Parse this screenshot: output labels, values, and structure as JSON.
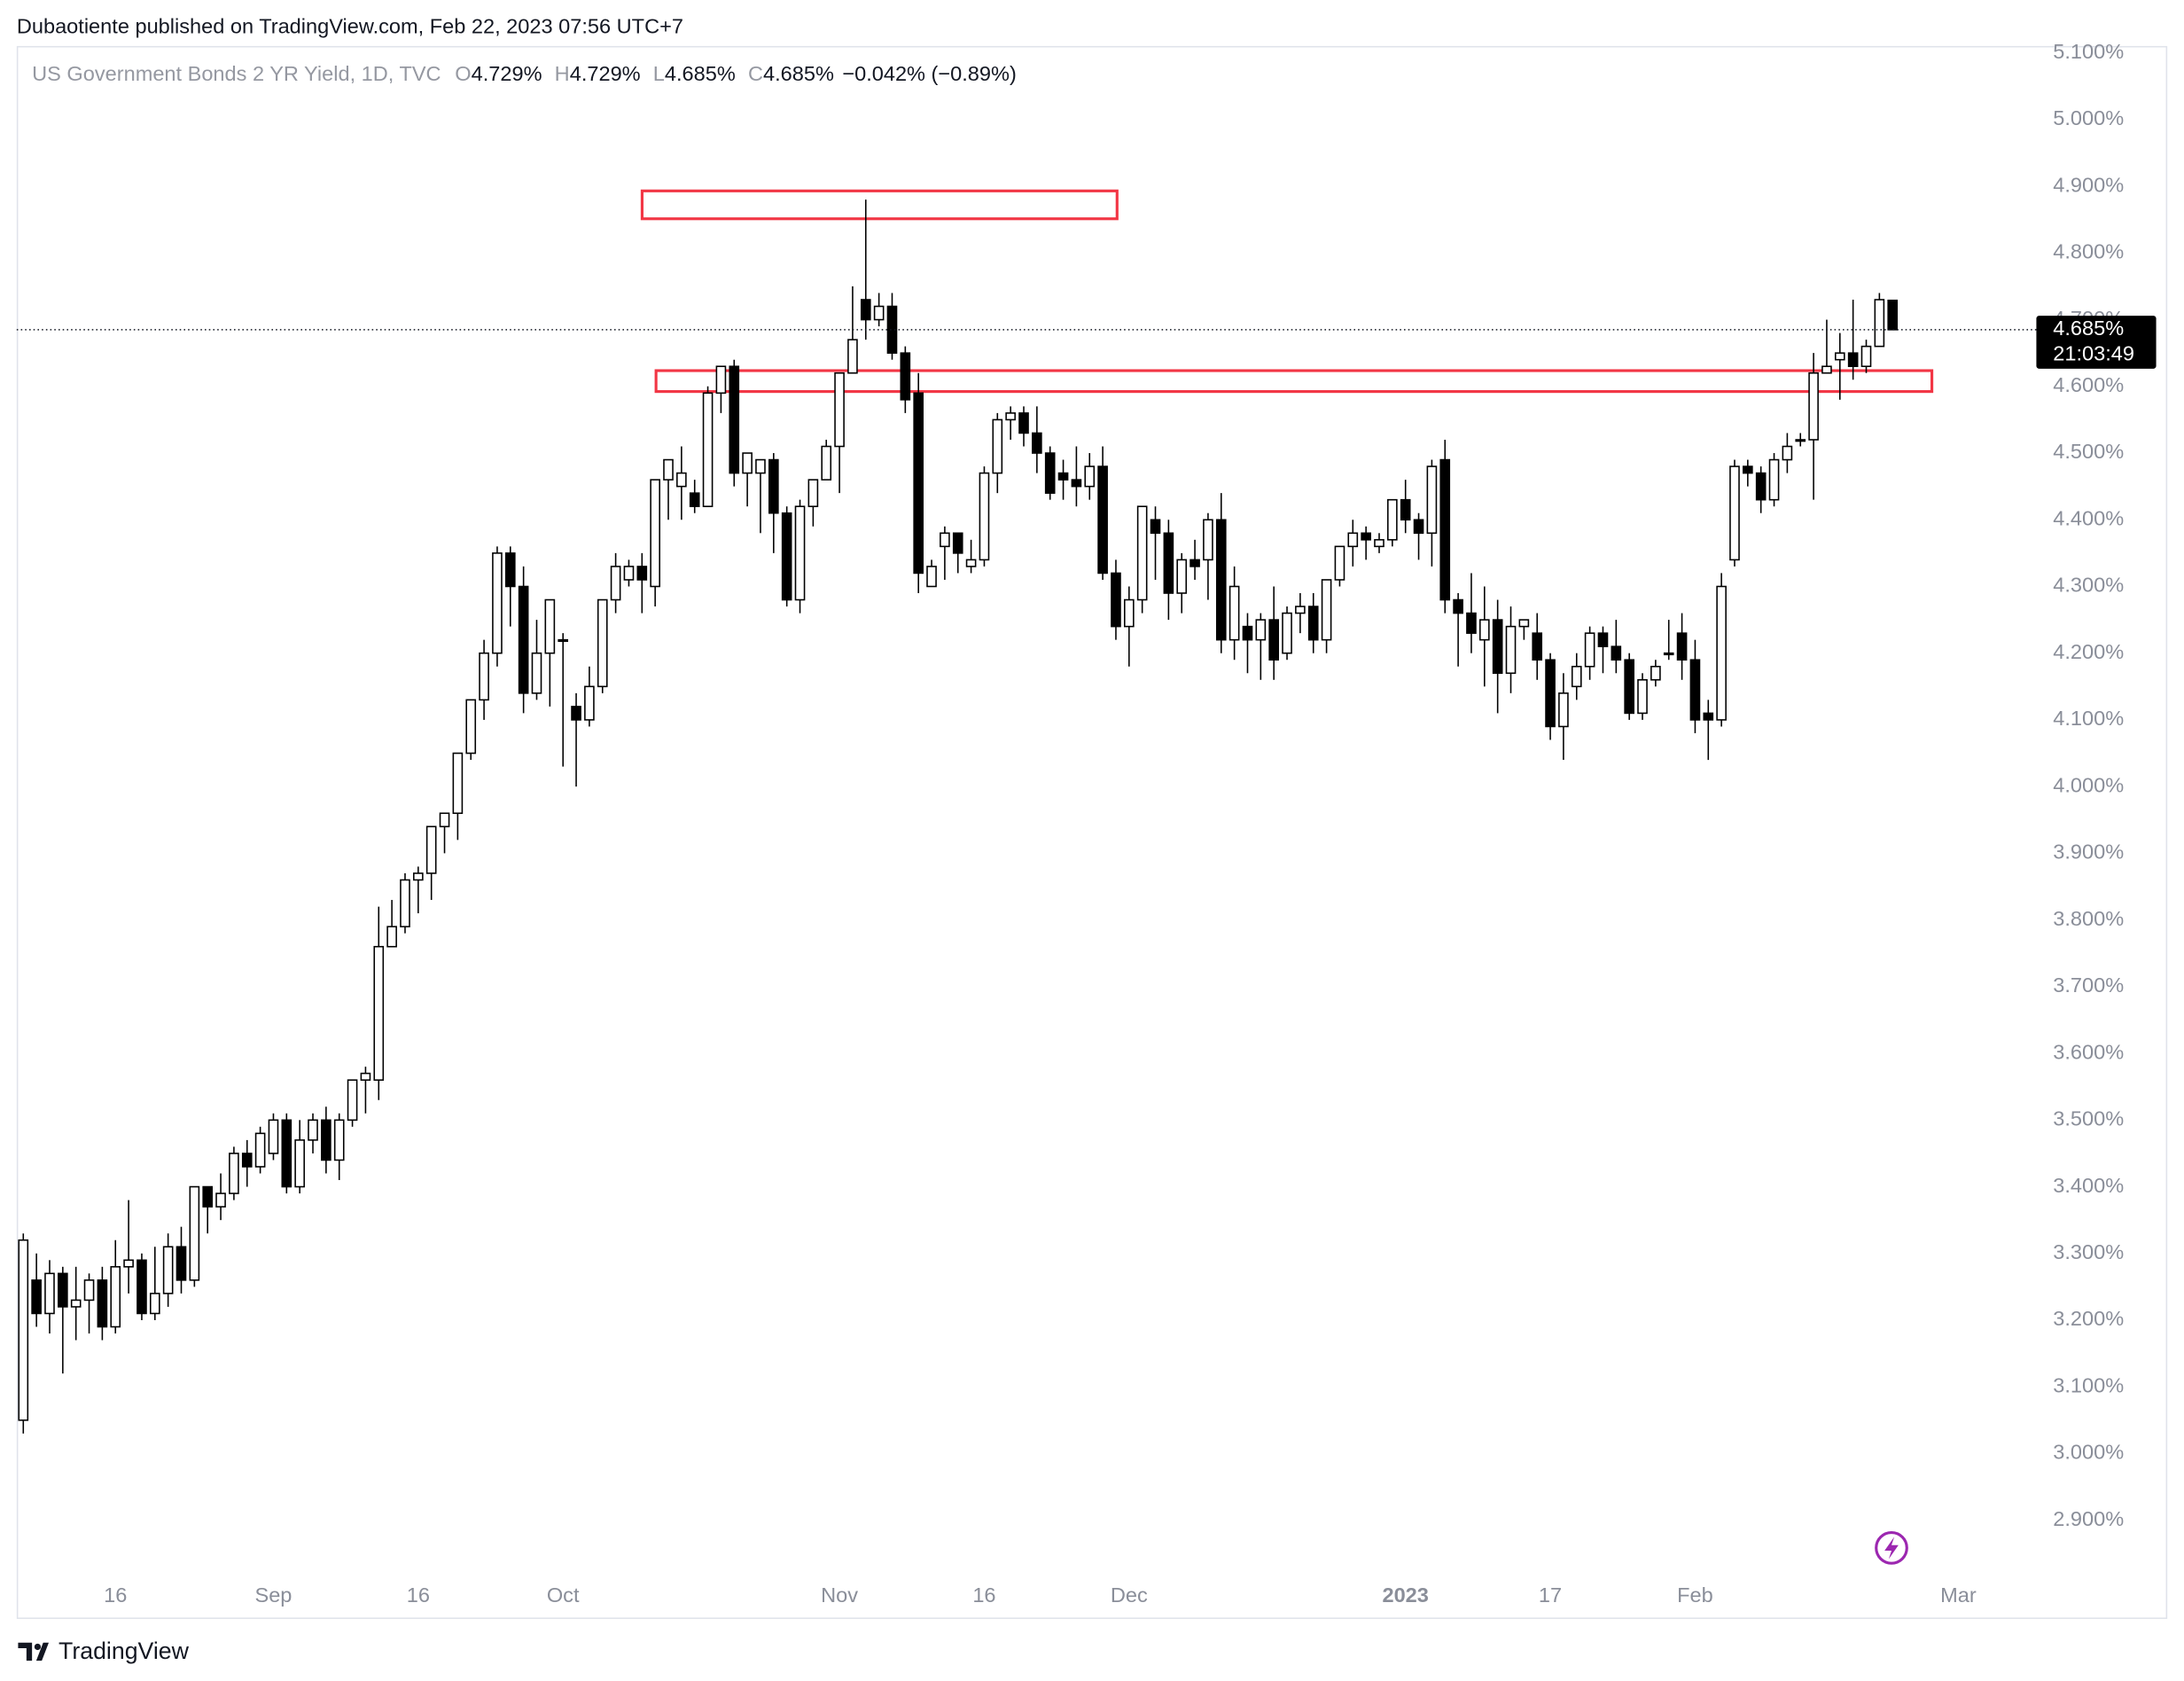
{
  "header": "Dubaotiente published on TradingView.com, Feb 22, 2023 07:56 UTC+7",
  "footer": "TradingView",
  "chart_data": {
    "type": "candlestick",
    "title": "US Government Bonds 2 YR Yield, 1D, TVC",
    "ohlc_legend": [
      {
        "label": "O",
        "value": "4.729%"
      },
      {
        "label": "H",
        "value": "4.729%"
      },
      {
        "label": "L",
        "value": "4.685%"
      },
      {
        "label": "C",
        "value": "4.685%"
      }
    ],
    "change": "−0.042% (−0.89%)",
    "last_price_label": "4.685%",
    "countdown": "21:03:49",
    "up_color": "#ffffff",
    "down_color": "#000000",
    "wick_color": "#000000",
    "xlim": [
      -0.5,
      152.5
    ],
    "xticks": [
      {
        "value": 7,
        "label": "16"
      },
      {
        "value": 19,
        "label": "Sep"
      },
      {
        "value": 30,
        "label": "16"
      },
      {
        "value": 41,
        "label": "Oct"
      },
      {
        "value": 62,
        "label": "Nov"
      },
      {
        "value": 73,
        "label": "16"
      },
      {
        "value": 84,
        "label": "Dec"
      },
      {
        "value": 105,
        "label": "2023"
      },
      {
        "value": 116,
        "label": "17"
      },
      {
        "value": 127,
        "label": "Feb"
      },
      {
        "value": 147,
        "label": "Mar"
      }
    ],
    "ylim": [
      2.823,
      5.15
    ],
    "yticks": [
      {
        "value": 2.9,
        "label": "2.900%"
      },
      {
        "value": 3.0,
        "label": "3.000%"
      },
      {
        "value": 3.1,
        "label": "3.100%"
      },
      {
        "value": 3.2,
        "label": "3.200%"
      },
      {
        "value": 3.3,
        "label": "3.300%"
      },
      {
        "value": 3.4,
        "label": "3.400%"
      },
      {
        "value": 3.5,
        "label": "3.500%"
      },
      {
        "value": 3.6,
        "label": "3.600%"
      },
      {
        "value": 3.7,
        "label": "3.700%"
      },
      {
        "value": 3.8,
        "label": "3.800%"
      },
      {
        "value": 3.9,
        "label": "3.900%"
      },
      {
        "value": 4.0,
        "label": "4.000%"
      },
      {
        "value": 4.1,
        "label": "4.100%"
      },
      {
        "value": 4.2,
        "label": "4.200%"
      },
      {
        "value": 4.3,
        "label": "4.300%"
      },
      {
        "value": 4.4,
        "label": "4.400%"
      },
      {
        "value": 4.5,
        "label": "4.500%"
      },
      {
        "value": 4.6,
        "label": "4.600%"
      },
      {
        "value": 4.7,
        "label": "4.700%"
      },
      {
        "value": 4.8,
        "label": "4.800%"
      },
      {
        "value": 4.9,
        "label": "4.900%"
      },
      {
        "value": 5.0,
        "label": "5.000%"
      },
      {
        "value": 5.1,
        "label": "5.100%"
      }
    ],
    "values": [
      [
        3.05,
        3.33,
        3.03,
        3.32
      ],
      [
        3.26,
        3.3,
        3.19,
        3.21
      ],
      [
        3.21,
        3.29,
        3.18,
        3.27
      ],
      [
        3.27,
        3.28,
        3.12,
        3.22
      ],
      [
        3.22,
        3.28,
        3.17,
        3.23
      ],
      [
        3.23,
        3.27,
        3.18,
        3.26
      ],
      [
        3.26,
        3.28,
        3.17,
        3.19
      ],
      [
        3.19,
        3.32,
        3.18,
        3.28
      ],
      [
        3.28,
        3.38,
        3.24,
        3.29
      ],
      [
        3.29,
        3.3,
        3.2,
        3.21
      ],
      [
        3.21,
        3.31,
        3.2,
        3.24
      ],
      [
        3.24,
        3.33,
        3.22,
        3.31
      ],
      [
        3.31,
        3.34,
        3.24,
        3.26
      ],
      [
        3.26,
        3.4,
        3.25,
        3.4
      ],
      [
        3.4,
        3.4,
        3.33,
        3.37
      ],
      [
        3.37,
        3.42,
        3.35,
        3.39
      ],
      [
        3.39,
        3.46,
        3.38,
        3.45
      ],
      [
        3.45,
        3.47,
        3.4,
        3.43
      ],
      [
        3.43,
        3.49,
        3.42,
        3.48
      ],
      [
        3.45,
        3.51,
        3.44,
        3.5
      ],
      [
        3.5,
        3.51,
        3.39,
        3.4
      ],
      [
        3.4,
        3.5,
        3.39,
        3.47
      ],
      [
        3.47,
        3.51,
        3.45,
        3.5
      ],
      [
        3.5,
        3.52,
        3.42,
        3.44
      ],
      [
        3.44,
        3.51,
        3.41,
        3.5
      ],
      [
        3.5,
        3.56,
        3.49,
        3.56
      ],
      [
        3.56,
        3.58,
        3.51,
        3.57
      ],
      [
        3.56,
        3.82,
        3.53,
        3.76
      ],
      [
        3.76,
        3.83,
        3.76,
        3.79
      ],
      [
        3.79,
        3.87,
        3.78,
        3.86
      ],
      [
        3.86,
        3.88,
        3.81,
        3.87
      ],
      [
        3.87,
        3.94,
        3.83,
        3.94
      ],
      [
        3.94,
        3.96,
        3.9,
        3.96
      ],
      [
        3.96,
        4.05,
        3.92,
        4.05
      ],
      [
        4.05,
        4.12,
        4.04,
        4.13
      ],
      [
        4.13,
        4.22,
        4.1,
        4.2
      ],
      [
        4.2,
        4.36,
        4.18,
        4.35
      ],
      [
        4.35,
        4.36,
        4.24,
        4.3
      ],
      [
        4.3,
        4.33,
        4.11,
        4.14
      ],
      [
        4.14,
        4.25,
        4.13,
        4.2
      ],
      [
        4.2,
        4.28,
        4.12,
        4.28
      ],
      [
        4.22,
        4.23,
        4.03,
        4.22
      ],
      [
        4.12,
        4.14,
        4.0,
        4.1
      ],
      [
        4.1,
        4.18,
        4.09,
        4.15
      ],
      [
        4.15,
        4.28,
        4.14,
        4.28
      ],
      [
        4.28,
        4.35,
        4.26,
        4.33
      ],
      [
        4.31,
        4.34,
        4.3,
        4.33
      ],
      [
        4.33,
        4.35,
        4.26,
        4.31
      ],
      [
        4.3,
        4.46,
        4.27,
        4.46
      ],
      [
        4.46,
        4.48,
        4.4,
        4.49
      ],
      [
        4.45,
        4.51,
        4.4,
        4.47
      ],
      [
        4.44,
        4.46,
        4.41,
        4.42
      ],
      [
        4.42,
        4.6,
        4.42,
        4.59
      ],
      [
        4.59,
        4.63,
        4.56,
        4.63
      ],
      [
        4.63,
        4.64,
        4.45,
        4.47
      ],
      [
        4.47,
        4.5,
        4.42,
        4.5
      ],
      [
        4.47,
        4.48,
        4.38,
        4.49
      ],
      [
        4.49,
        4.5,
        4.35,
        4.41
      ],
      [
        4.41,
        4.42,
        4.27,
        4.28
      ],
      [
        4.28,
        4.43,
        4.26,
        4.42
      ],
      [
        4.42,
        4.45,
        4.39,
        4.46
      ],
      [
        4.46,
        4.52,
        4.46,
        4.51
      ],
      [
        4.51,
        4.62,
        4.44,
        4.62
      ],
      [
        4.62,
        4.75,
        4.62,
        4.67
      ],
      [
        4.73,
        4.88,
        4.67,
        4.7
      ],
      [
        4.7,
        4.74,
        4.69,
        4.72
      ],
      [
        4.72,
        4.74,
        4.64,
        4.65
      ],
      [
        4.65,
        4.66,
        4.56,
        4.58
      ],
      [
        4.59,
        4.62,
        4.29,
        4.32
      ],
      [
        4.3,
        4.34,
        4.31,
        4.33
      ],
      [
        4.36,
        4.39,
        4.31,
        4.38
      ],
      [
        4.38,
        4.38,
        4.32,
        4.35
      ],
      [
        4.33,
        4.37,
        4.32,
        4.34
      ],
      [
        4.34,
        4.48,
        4.33,
        4.47
      ],
      [
        4.47,
        4.56,
        4.44,
        4.55
      ],
      [
        4.55,
        4.57,
        4.52,
        4.56
      ],
      [
        4.56,
        4.57,
        4.51,
        4.53
      ],
      [
        4.53,
        4.57,
        4.47,
        4.5
      ],
      [
        4.5,
        4.51,
        4.43,
        4.44
      ],
      [
        4.47,
        4.49,
        4.43,
        4.46
      ],
      [
        4.46,
        4.51,
        4.42,
        4.45
      ],
      [
        4.45,
        4.5,
        4.43,
        4.48
      ],
      [
        4.48,
        4.51,
        4.31,
        4.32
      ],
      [
        4.32,
        4.34,
        4.22,
        4.24
      ],
      [
        4.24,
        4.3,
        4.18,
        4.28
      ],
      [
        4.28,
        4.42,
        4.26,
        4.42
      ],
      [
        4.4,
        4.42,
        4.31,
        4.38
      ],
      [
        4.38,
        4.4,
        4.25,
        4.29
      ],
      [
        4.29,
        4.35,
        4.26,
        4.34
      ],
      [
        4.34,
        4.37,
        4.31,
        4.33
      ],
      [
        4.34,
        4.41,
        4.28,
        4.4
      ],
      [
        4.4,
        4.44,
        4.2,
        4.22
      ],
      [
        4.22,
        4.33,
        4.19,
        4.3
      ],
      [
        4.24,
        4.26,
        4.17,
        4.22
      ],
      [
        4.22,
        4.26,
        4.16,
        4.25
      ],
      [
        4.25,
        4.3,
        4.16,
        4.19
      ],
      [
        4.2,
        4.27,
        4.19,
        4.26
      ],
      [
        4.26,
        4.29,
        4.23,
        4.27
      ],
      [
        4.27,
        4.29,
        4.2,
        4.22
      ],
      [
        4.22,
        4.3,
        4.2,
        4.31
      ],
      [
        4.31,
        4.36,
        4.3,
        4.36
      ],
      [
        4.36,
        4.4,
        4.33,
        4.38
      ],
      [
        4.38,
        4.39,
        4.34,
        4.37
      ],
      [
        4.36,
        4.38,
        4.35,
        4.37
      ],
      [
        4.37,
        4.43,
        4.36,
        4.43
      ],
      [
        4.43,
        4.46,
        4.38,
        4.4
      ],
      [
        4.4,
        4.41,
        4.34,
        4.38
      ],
      [
        4.38,
        4.49,
        4.33,
        4.48
      ],
      [
        4.49,
        4.52,
        4.26,
        4.28
      ],
      [
        4.28,
        4.29,
        4.18,
        4.26
      ],
      [
        4.26,
        4.32,
        4.2,
        4.23
      ],
      [
        4.22,
        4.3,
        4.15,
        4.25
      ],
      [
        4.25,
        4.28,
        4.11,
        4.17
      ],
      [
        4.17,
        4.27,
        4.14,
        4.24
      ],
      [
        4.24,
        4.25,
        4.22,
        4.25
      ],
      [
        4.23,
        4.26,
        4.16,
        4.19
      ],
      [
        4.19,
        4.2,
        4.07,
        4.09
      ],
      [
        4.09,
        4.17,
        4.04,
        4.14
      ],
      [
        4.15,
        4.2,
        4.13,
        4.18
      ],
      [
        4.18,
        4.24,
        4.16,
        4.23
      ],
      [
        4.23,
        4.24,
        4.17,
        4.21
      ],
      [
        4.21,
        4.25,
        4.17,
        4.19
      ],
      [
        4.19,
        4.2,
        4.1,
        4.11
      ],
      [
        4.11,
        4.17,
        4.1,
        4.16
      ],
      [
        4.16,
        4.19,
        4.15,
        4.18
      ],
      [
        4.2,
        4.25,
        4.19,
        4.2
      ],
      [
        4.23,
        4.26,
        4.16,
        4.19
      ],
      [
        4.19,
        4.22,
        4.08,
        4.1
      ],
      [
        4.11,
        4.13,
        4.04,
        4.1
      ],
      [
        4.1,
        4.32,
        4.09,
        4.3
      ],
      [
        4.34,
        4.49,
        4.33,
        4.48
      ],
      [
        4.48,
        4.49,
        4.45,
        4.47
      ],
      [
        4.47,
        4.48,
        4.41,
        4.43
      ],
      [
        4.43,
        4.5,
        4.42,
        4.49
      ],
      [
        4.49,
        4.53,
        4.47,
        4.51
      ],
      [
        4.52,
        4.53,
        4.51,
        4.52
      ],
      [
        4.52,
        4.65,
        4.43,
        4.62
      ],
      [
        4.62,
        4.7,
        4.62,
        4.63
      ],
      [
        4.64,
        4.68,
        4.58,
        4.65
      ],
      [
        4.65,
        4.73,
        4.61,
        4.63
      ],
      [
        4.63,
        4.67,
        4.62,
        4.66
      ],
      [
        4.66,
        4.74,
        4.66,
        4.73
      ],
      [
        4.729,
        4.729,
        4.685,
        4.685
      ]
    ]
  }
}
